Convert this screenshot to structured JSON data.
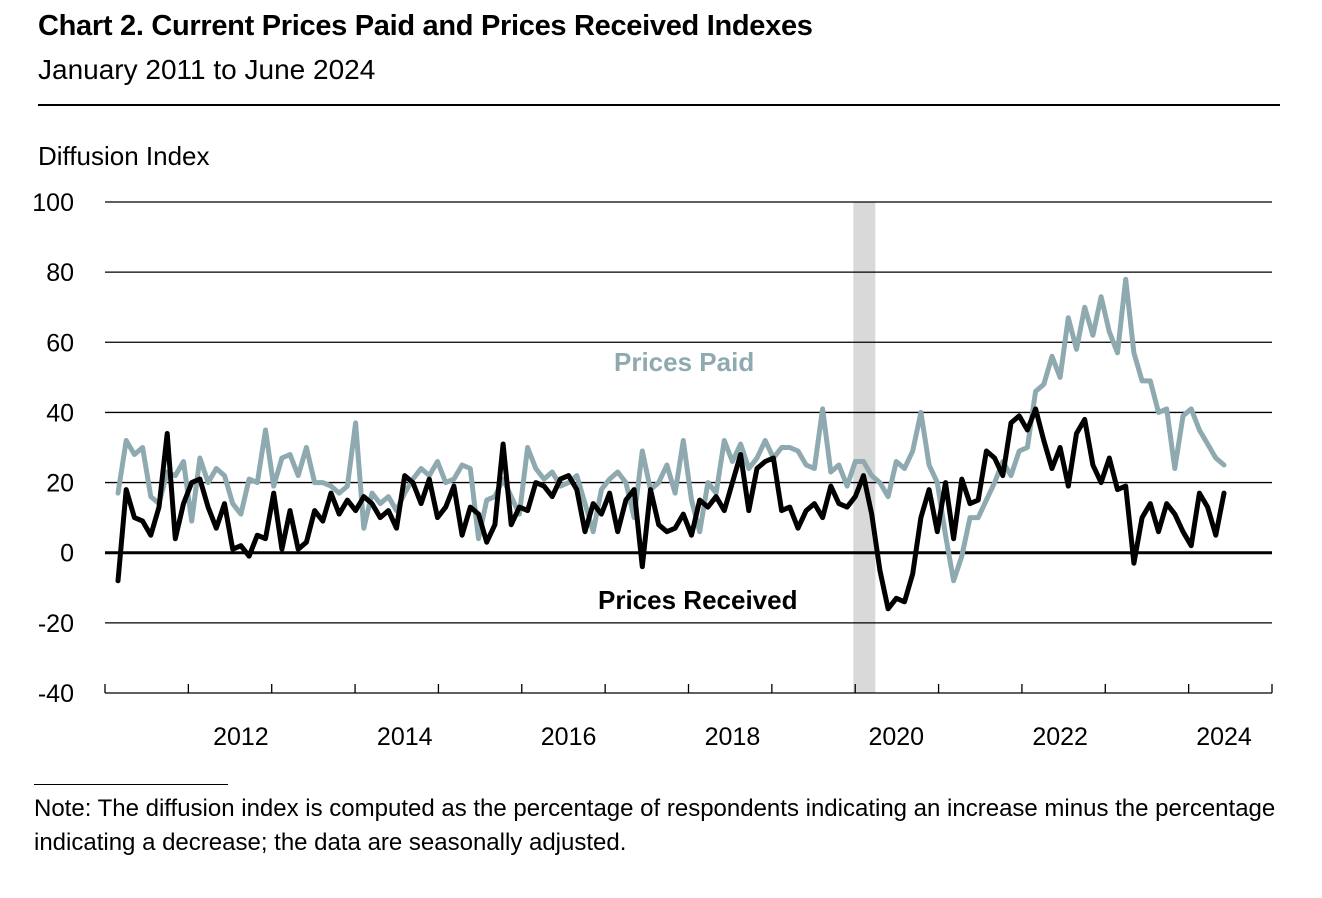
{
  "header": {
    "title": "Chart 2. Current Prices Paid and Prices Received Indexes",
    "subtitle": "January 2011 to June 2024"
  },
  "footer": {
    "note": "Note: The diffusion index is computed as the percentage of respondents indicating an increase minus the percentage indicating a decrease; the data are seasonally adjusted."
  },
  "colors": {
    "prices_paid": "#8eaab0",
    "prices_received": "#000000",
    "recession": "#d9d9d9"
  },
  "chart_data": {
    "type": "line",
    "title": "Chart 2. Current Prices Paid and Prices Received Indexes",
    "subtitle": "January 2011 to June 2024",
    "ylabel": "Diffusion Index",
    "xlabel": "",
    "ylim": [
      -40,
      100
    ],
    "yticks": [
      "100",
      "80",
      "60",
      "40",
      "20",
      "0",
      "-20",
      "-40"
    ],
    "xlim": [
      2011.0,
      2024.5
    ],
    "xtick_labels": [
      "2012",
      "2014",
      "2016",
      "2018",
      "2020",
      "2022",
      "2024"
    ],
    "grid": "horizontal",
    "recession_shading": [
      2020.0,
      2020.25
    ],
    "series": [
      {
        "name": "Prices Paid",
        "label_text": "Prices Paid",
        "points": [
          [
            2011.0,
            17
          ],
          [
            2011.1,
            32
          ],
          [
            2011.2,
            28
          ],
          [
            2011.3,
            30
          ],
          [
            2011.4,
            16
          ],
          [
            2011.5,
            14
          ],
          [
            2011.6,
            23
          ],
          [
            2011.7,
            22
          ],
          [
            2011.8,
            26
          ],
          [
            2011.9,
            9
          ],
          [
            2012.0,
            27
          ],
          [
            2012.1,
            20
          ],
          [
            2012.2,
            24
          ],
          [
            2012.3,
            22
          ],
          [
            2012.4,
            14
          ],
          [
            2012.5,
            11
          ],
          [
            2012.6,
            21
          ],
          [
            2012.7,
            20
          ],
          [
            2012.8,
            35
          ],
          [
            2012.9,
            19
          ],
          [
            2013.0,
            27
          ],
          [
            2013.1,
            28
          ],
          [
            2013.2,
            22
          ],
          [
            2013.3,
            30
          ],
          [
            2013.4,
            20
          ],
          [
            2013.5,
            20
          ],
          [
            2013.6,
            19
          ],
          [
            2013.7,
            17
          ],
          [
            2013.8,
            19
          ],
          [
            2013.9,
            37
          ],
          [
            2014.0,
            7
          ],
          [
            2014.1,
            17
          ],
          [
            2014.2,
            14
          ],
          [
            2014.3,
            16
          ],
          [
            2014.4,
            12
          ],
          [
            2014.5,
            17
          ],
          [
            2014.6,
            21
          ],
          [
            2014.7,
            24
          ],
          [
            2014.8,
            22
          ],
          [
            2014.9,
            26
          ],
          [
            2015.0,
            20
          ],
          [
            2015.1,
            21
          ],
          [
            2015.2,
            25
          ],
          [
            2015.3,
            24
          ],
          [
            2015.4,
            4
          ],
          [
            2015.5,
            15
          ],
          [
            2015.6,
            16
          ],
          [
            2015.7,
            21
          ],
          [
            2015.8,
            16
          ],
          [
            2015.9,
            11
          ],
          [
            2016.0,
            30
          ],
          [
            2016.1,
            24
          ],
          [
            2016.2,
            21
          ],
          [
            2016.3,
            23
          ],
          [
            2016.4,
            19
          ],
          [
            2016.5,
            20
          ],
          [
            2016.6,
            22
          ],
          [
            2016.7,
            14
          ],
          [
            2016.8,
            6
          ],
          [
            2016.9,
            18
          ],
          [
            2017.0,
            21
          ],
          [
            2017.1,
            23
          ],
          [
            2017.2,
            20
          ],
          [
            2017.3,
            10
          ],
          [
            2017.4,
            29
          ],
          [
            2017.5,
            18
          ],
          [
            2017.6,
            20
          ],
          [
            2017.7,
            25
          ],
          [
            2017.8,
            17
          ],
          [
            2017.9,
            32
          ],
          [
            2018.0,
            15
          ],
          [
            2018.1,
            6
          ],
          [
            2018.2,
            20
          ],
          [
            2018.3,
            17
          ],
          [
            2018.4,
            32
          ],
          [
            2018.5,
            26
          ],
          [
            2018.6,
            31
          ],
          [
            2018.7,
            24
          ],
          [
            2018.8,
            27
          ],
          [
            2018.9,
            32
          ],
          [
            2019.0,
            27
          ],
          [
            2019.1,
            30
          ],
          [
            2019.2,
            30
          ],
          [
            2019.3,
            29
          ],
          [
            2019.4,
            25
          ],
          [
            2019.5,
            24
          ],
          [
            2019.6,
            41
          ],
          [
            2019.7,
            23
          ],
          [
            2019.8,
            25
          ],
          [
            2019.9,
            19
          ],
          [
            2020.0,
            26
          ],
          [
            2020.1,
            26
          ],
          [
            2020.2,
            22
          ],
          [
            2020.3,
            20
          ],
          [
            2020.4,
            16
          ],
          [
            2020.5,
            26
          ],
          [
            2020.6,
            24
          ],
          [
            2020.7,
            29
          ],
          [
            2020.8,
            40
          ],
          [
            2020.9,
            25
          ],
          [
            2021.0,
            20
          ],
          [
            2021.1,
            5
          ],
          [
            2021.2,
            -8
          ],
          [
            2021.3,
            -1
          ],
          [
            2021.4,
            10
          ],
          [
            2021.5,
            10
          ],
          [
            2021.6,
            15
          ],
          [
            2021.7,
            20
          ],
          [
            2021.8,
            26
          ],
          [
            2021.9,
            22
          ],
          [
            2022.0,
            29
          ],
          [
            2022.1,
            30
          ],
          [
            2022.2,
            46
          ],
          [
            2022.3,
            48
          ],
          [
            2022.4,
            56
          ],
          [
            2022.5,
            50
          ],
          [
            2022.6,
            67
          ],
          [
            2022.7,
            58
          ],
          [
            2022.8,
            70
          ],
          [
            2022.9,
            62
          ],
          [
            2023.0,
            73
          ],
          [
            2023.1,
            63
          ],
          [
            2023.2,
            57
          ],
          [
            2023.3,
            78
          ],
          [
            2023.4,
            57
          ],
          [
            2023.5,
            49
          ],
          [
            2023.6,
            49
          ],
          [
            2023.7,
            40
          ],
          [
            2023.8,
            41
          ],
          [
            2023.9,
            24
          ],
          [
            2024.0,
            39
          ],
          [
            2024.1,
            41
          ],
          [
            2024.2,
            35
          ],
          [
            2024.3,
            31
          ],
          [
            2024.4,
            27
          ],
          [
            2024.5,
            25
          ]
        ]
      },
      {
        "name": "Prices Received",
        "label_text": "Prices Received",
        "points": [
          [
            2011.0,
            -8
          ],
          [
            2011.1,
            18
          ],
          [
            2011.2,
            10
          ],
          [
            2011.3,
            9
          ],
          [
            2011.4,
            5
          ],
          [
            2011.5,
            13
          ],
          [
            2011.6,
            34
          ],
          [
            2011.7,
            4
          ],
          [
            2011.8,
            14
          ],
          [
            2011.9,
            20
          ],
          [
            2012.0,
            21
          ],
          [
            2012.1,
            13
          ],
          [
            2012.2,
            7
          ],
          [
            2012.3,
            14
          ],
          [
            2012.4,
            1
          ],
          [
            2012.5,
            2
          ],
          [
            2012.6,
            -1
          ],
          [
            2012.7,
            5
          ],
          [
            2012.8,
            4
          ],
          [
            2012.9,
            17
          ],
          [
            2013.0,
            1
          ],
          [
            2013.1,
            12
          ],
          [
            2013.2,
            1
          ],
          [
            2013.3,
            3
          ],
          [
            2013.4,
            12
          ],
          [
            2013.5,
            9
          ],
          [
            2013.6,
            17
          ],
          [
            2013.7,
            11
          ],
          [
            2013.8,
            15
          ],
          [
            2013.9,
            12
          ],
          [
            2014.0,
            16
          ],
          [
            2014.1,
            14
          ],
          [
            2014.2,
            10
          ],
          [
            2014.3,
            12
          ],
          [
            2014.4,
            7
          ],
          [
            2014.5,
            22
          ],
          [
            2014.6,
            20
          ],
          [
            2014.7,
            14
          ],
          [
            2014.8,
            21
          ],
          [
            2014.9,
            10
          ],
          [
            2015.0,
            13
          ],
          [
            2015.1,
            19
          ],
          [
            2015.2,
            5
          ],
          [
            2015.3,
            13
          ],
          [
            2015.4,
            11
          ],
          [
            2015.5,
            3
          ],
          [
            2015.6,
            8
          ],
          [
            2015.7,
            31
          ],
          [
            2015.8,
            8
          ],
          [
            2015.9,
            13
          ],
          [
            2016.0,
            12
          ],
          [
            2016.1,
            20
          ],
          [
            2016.2,
            19
          ],
          [
            2016.3,
            16
          ],
          [
            2016.4,
            21
          ],
          [
            2016.5,
            22
          ],
          [
            2016.6,
            18
          ],
          [
            2016.7,
            6
          ],
          [
            2016.8,
            14
          ],
          [
            2016.9,
            11
          ],
          [
            2017.0,
            17
          ],
          [
            2017.1,
            6
          ],
          [
            2017.2,
            15
          ],
          [
            2017.3,
            18
          ],
          [
            2017.4,
            -4
          ],
          [
            2017.5,
            18
          ],
          [
            2017.6,
            8
          ],
          [
            2017.7,
            6
          ],
          [
            2017.8,
            7
          ],
          [
            2017.9,
            11
          ],
          [
            2018.0,
            5
          ],
          [
            2018.1,
            15
          ],
          [
            2018.2,
            13
          ],
          [
            2018.3,
            16
          ],
          [
            2018.4,
            12
          ],
          [
            2018.5,
            20
          ],
          [
            2018.6,
            28
          ],
          [
            2018.7,
            12
          ],
          [
            2018.8,
            24
          ],
          [
            2018.9,
            26
          ],
          [
            2019.0,
            27
          ],
          [
            2019.1,
            12
          ],
          [
            2019.2,
            13
          ],
          [
            2019.3,
            7
          ],
          [
            2019.4,
            12
          ],
          [
            2019.5,
            14
          ],
          [
            2019.6,
            10
          ],
          [
            2019.7,
            19
          ],
          [
            2019.8,
            14
          ],
          [
            2019.9,
            13
          ],
          [
            2020.0,
            16
          ],
          [
            2020.1,
            22
          ],
          [
            2020.2,
            11
          ],
          [
            2020.3,
            -5
          ],
          [
            2020.4,
            -16
          ],
          [
            2020.5,
            -13
          ],
          [
            2020.6,
            -14
          ],
          [
            2020.7,
            -6
          ],
          [
            2020.8,
            10
          ],
          [
            2020.9,
            18
          ],
          [
            2021.0,
            6
          ],
          [
            2021.1,
            20
          ],
          [
            2021.2,
            4
          ],
          [
            2021.3,
            21
          ],
          [
            2021.4,
            14
          ],
          [
            2021.5,
            15
          ],
          [
            2021.6,
            29
          ],
          [
            2021.7,
            27
          ],
          [
            2021.8,
            22
          ],
          [
            2021.9,
            37
          ],
          [
            2022.0,
            39
          ],
          [
            2022.1,
            35
          ],
          [
            2022.2,
            41
          ],
          [
            2022.3,
            32
          ],
          [
            2022.4,
            24
          ],
          [
            2022.5,
            30
          ],
          [
            2022.6,
            19
          ],
          [
            2022.7,
            34
          ],
          [
            2022.8,
            38
          ],
          [
            2022.9,
            25
          ],
          [
            2023.0,
            20
          ],
          [
            2023.1,
            27
          ],
          [
            2023.2,
            18
          ],
          [
            2023.3,
            19
          ],
          [
            2023.4,
            -3
          ],
          [
            2023.5,
            10
          ],
          [
            2023.6,
            14
          ],
          [
            2023.7,
            6
          ],
          [
            2023.8,
            14
          ],
          [
            2023.9,
            11
          ],
          [
            2024.0,
            6
          ],
          [
            2024.1,
            2
          ],
          [
            2024.2,
            17
          ],
          [
            2024.3,
            13
          ],
          [
            2024.4,
            5
          ],
          [
            2024.5,
            17
          ]
        ]
      }
    ]
  }
}
